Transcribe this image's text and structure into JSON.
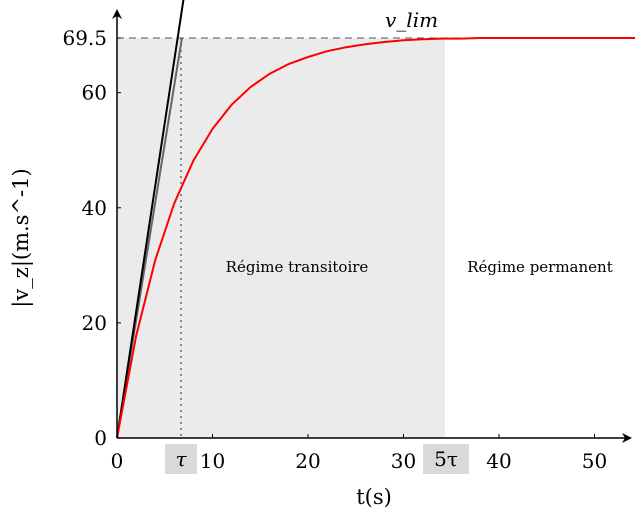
{
  "chart_data": {
    "type": "line",
    "title": "",
    "xlabel": "t(s)",
    "ylabel": "|v_z|(m.s^-1)",
    "xlim": [
      0,
      55
    ],
    "ylim": [
      0,
      72.5
    ],
    "x_ticks": [
      0,
      10,
      20,
      30,
      40,
      50
    ],
    "x_tick_labels": [
      "0",
      "10",
      "20",
      "30",
      "40",
      "50"
    ],
    "y_ticks": [
      0,
      20,
      40,
      60,
      69.5
    ],
    "y_tick_labels": [
      "0",
      "20",
      "40",
      "60",
      "69.5"
    ],
    "v_lim": 69.5,
    "tau": 6.8,
    "series": [
      {
        "name": "",
        "color": "#ff0000",
        "x": [
          0,
          2,
          4,
          6,
          8,
          10,
          12,
          14,
          16,
          18,
          20,
          22,
          24,
          26,
          28,
          30,
          32,
          34,
          36,
          38,
          40,
          45,
          50,
          55
        ],
        "y": [
          0,
          17.7,
          30.9,
          40.8,
          48.2,
          53.7,
          57.9,
          61.0,
          63.3,
          65.0,
          66.2,
          67.2,
          67.9,
          68.4,
          68.8,
          69.1,
          69.3,
          69.4,
          69.4,
          69.5,
          69.5,
          69.5,
          69.5,
          69.5
        ]
      }
    ],
    "tangent": {
      "x": [
        0,
        7.1
      ],
      "y": [
        0,
        72.5
      ],
      "color": "#000000"
    },
    "secant": {
      "x": [
        0,
        6.8
      ],
      "y": [
        0,
        69.5
      ],
      "color": "#666666"
    },
    "regions": [
      {
        "label": "Régime transitoire",
        "x_range": [
          0,
          34
        ],
        "fill": "#ebebeb"
      },
      {
        "label": "Régime permanent",
        "x_range": [
          34,
          55
        ],
        "fill": "#ffffff"
      }
    ],
    "markers": [
      {
        "label": "τ",
        "x": 6.8
      },
      {
        "label": "5τ",
        "x": 34
      }
    ],
    "annotation": "v_lim",
    "grid": false
  }
}
